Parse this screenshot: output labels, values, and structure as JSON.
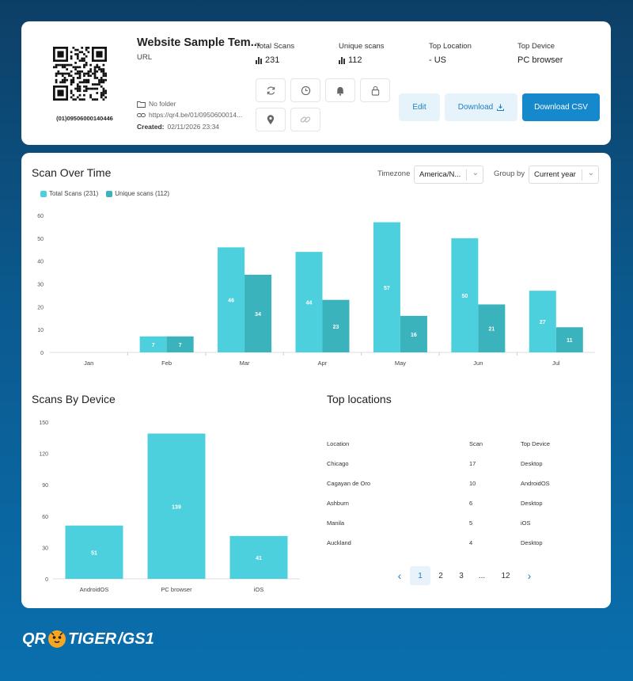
{
  "qr": {
    "title": "Website Sample Tem...",
    "type": "URL",
    "code_text": "(01)09506000140446",
    "folder": "No folder",
    "link": "https://qr4.be/01/0950600014...",
    "created_label": "Created:",
    "created_value": "02/11/2026 23:34"
  },
  "stats": [
    {
      "label": "Total Scans",
      "value": "231",
      "icon": "bar-chart-icon"
    },
    {
      "label": "Unique scans",
      "value": "112",
      "icon": "bar-chart-icon"
    },
    {
      "label": "Top Location",
      "value": "- US"
    },
    {
      "label": "Top Device",
      "value": "PC browser"
    }
  ],
  "icon_buttons": [
    "refresh-icon",
    "clock-icon",
    "bell-icon",
    "lock-icon",
    "location-pin-icon",
    "link-icon"
  ],
  "actions": {
    "edit": "Edit",
    "download": "Download",
    "download_csv": "Download CSV"
  },
  "scan_over_time": {
    "title": "Scan Over Time",
    "timezone_label": "Timezone",
    "timezone_value": "America/N...",
    "group_by_label": "Group by",
    "group_by_value": "Current year"
  },
  "colors": {
    "total": "#4dd0dd",
    "unique": "#3ab3bd",
    "primary": "#1688cc"
  },
  "scans_by_device": {
    "title": "Scans By Device"
  },
  "top_locations": {
    "title": "Top locations",
    "headers": [
      "Location",
      "Scan",
      "Top Device"
    ],
    "rows": [
      [
        "Chicago",
        "17",
        "Desktop"
      ],
      [
        "Cagayan de Oro",
        "10",
        "AndroidOS"
      ],
      [
        "Ashburn",
        "6",
        "Desktop"
      ],
      [
        "Manila",
        "5",
        "iOS"
      ],
      [
        "Auckland",
        "4",
        "Desktop"
      ]
    ],
    "pagination": [
      "1",
      "2",
      "3",
      "...",
      "12"
    ]
  },
  "brand": {
    "left": "QR",
    "mid": "TIGER",
    "right": "/GS1"
  },
  "chart_data": [
    {
      "type": "bar",
      "categories": [
        "Jan",
        "Feb",
        "Mar",
        "Apr",
        "May",
        "Jun",
        "Jul"
      ],
      "series": [
        {
          "name": "Total Scans (231)",
          "values": [
            0,
            7,
            46,
            44,
            57,
            50,
            27
          ]
        },
        {
          "name": "Unique scans (112)",
          "values": [
            0,
            7,
            34,
            23,
            16,
            21,
            11
          ]
        }
      ],
      "yticks": [
        0,
        10,
        20,
        30,
        40,
        50,
        60
      ],
      "ylim": [
        0,
        60
      ]
    },
    {
      "type": "bar",
      "categories": [
        "AndroidOS",
        "PC browser",
        "iOS"
      ],
      "values": [
        51,
        139,
        41
      ],
      "yticks": [
        0,
        30,
        60,
        90,
        120,
        150
      ],
      "ylim": [
        0,
        150
      ]
    }
  ]
}
